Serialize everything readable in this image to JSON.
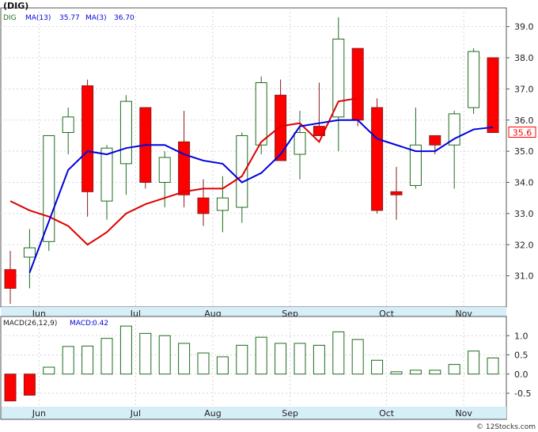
{
  "chart_data": [
    {
      "type": "candlestick",
      "title": "(DIG)",
      "symbol": "DIG",
      "ma13_label": "MA(13)",
      "ma13_value": "35.77",
      "ma3_label": "MA(3)",
      "ma3_value": "36.70",
      "last_price": "35.6",
      "ylim": [
        30.0,
        39.6
      ],
      "yticks": [
        "31.0",
        "32.0",
        "33.0",
        "34.0",
        "35.0",
        "36.0",
        "37.0",
        "38.0",
        "39.0"
      ],
      "ytick_values": [
        31,
        32,
        33,
        34,
        35,
        36,
        37,
        38,
        39
      ],
      "x_labels": [
        "Jun",
        "Jul",
        "Aug",
        "Sep",
        "Oct",
        "Nov"
      ],
      "x_label_index": [
        1,
        6,
        10,
        14,
        19,
        23
      ],
      "grid": true,
      "colors": {
        "up": "#1e6b1e",
        "down": "#ff0000",
        "ma13": "#0000dd",
        "ma3": "#dd0000",
        "axis_strip": "#d6eef8"
      },
      "candles": [
        {
          "o": 31.2,
          "h": 31.8,
          "l": 30.1,
          "c": 30.6
        },
        {
          "o": 31.6,
          "h": 32.5,
          "l": 30.6,
          "c": 31.9
        },
        {
          "o": 32.1,
          "h": 35.5,
          "l": 31.8,
          "c": 35.5
        },
        {
          "o": 35.6,
          "h": 36.4,
          "l": 34.9,
          "c": 36.1
        },
        {
          "o": 37.1,
          "h": 37.3,
          "l": 32.9,
          "c": 33.7
        },
        {
          "o": 33.4,
          "h": 35.2,
          "l": 32.8,
          "c": 35.1
        },
        {
          "o": 34.6,
          "h": 36.8,
          "l": 33.6,
          "c": 36.6
        },
        {
          "o": 36.4,
          "h": 36.4,
          "l": 33.8,
          "c": 34.0
        },
        {
          "o": 34.0,
          "h": 35.0,
          "l": 33.2,
          "c": 34.8
        },
        {
          "o": 35.3,
          "h": 36.3,
          "l": 33.2,
          "c": 33.6
        },
        {
          "o": 33.5,
          "h": 34.1,
          "l": 32.6,
          "c": 33.0
        },
        {
          "o": 33.1,
          "h": 34.2,
          "l": 32.4,
          "c": 33.5
        },
        {
          "o": 33.2,
          "h": 35.6,
          "l": 32.7,
          "c": 35.5
        },
        {
          "o": 35.2,
          "h": 37.4,
          "l": 34.9,
          "c": 37.2
        },
        {
          "o": 36.8,
          "h": 37.3,
          "l": 34.7,
          "c": 34.7
        },
        {
          "o": 34.9,
          "h": 36.3,
          "l": 34.1,
          "c": 35.6
        },
        {
          "o": 35.8,
          "h": 37.2,
          "l": 35.5,
          "c": 35.5
        },
        {
          "o": 36.1,
          "h": 39.3,
          "l": 35.0,
          "c": 38.6
        },
        {
          "o": 38.3,
          "h": 38.3,
          "l": 35.8,
          "c": 36.0
        },
        {
          "o": 36.4,
          "h": 36.7,
          "l": 33.0,
          "c": 33.1
        },
        {
          "o": 33.7,
          "h": 34.5,
          "l": 32.8,
          "c": 33.6
        },
        {
          "o": 33.9,
          "h": 36.4,
          "l": 33.8,
          "c": 35.2
        },
        {
          "o": 35.5,
          "h": 35.5,
          "l": 34.9,
          "c": 35.2
        },
        {
          "o": 35.2,
          "h": 36.3,
          "l": 33.8,
          "c": 36.2
        },
        {
          "o": 36.4,
          "h": 38.3,
          "l": 36.2,
          "c": 38.2
        },
        {
          "o": 38.0,
          "h": 38.0,
          "l": 35.6,
          "c": 35.6
        }
      ],
      "ma13": [
        {
          "i": 1,
          "v": 31.1
        },
        {
          "i": 3,
          "v": 34.4
        },
        {
          "i": 4,
          "v": 35.0
        },
        {
          "i": 5,
          "v": 34.9
        },
        {
          "i": 6,
          "v": 35.1
        },
        {
          "i": 7,
          "v": 35.2
        },
        {
          "i": 8,
          "v": 35.2
        },
        {
          "i": 9,
          "v": 34.9
        },
        {
          "i": 10,
          "v": 34.7
        },
        {
          "i": 11,
          "v": 34.6
        },
        {
          "i": 12,
          "v": 34.0
        },
        {
          "i": 13,
          "v": 34.3
        },
        {
          "i": 14,
          "v": 34.9
        },
        {
          "i": 15,
          "v": 35.8
        },
        {
          "i": 16,
          "v": 35.9
        },
        {
          "i": 17,
          "v": 36.0
        },
        {
          "i": 18,
          "v": 36.0
        },
        {
          "i": 19,
          "v": 35.4
        },
        {
          "i": 20,
          "v": 35.2
        },
        {
          "i": 21,
          "v": 35.0
        },
        {
          "i": 22,
          "v": 35.0
        },
        {
          "i": 23,
          "v": 35.4
        },
        {
          "i": 24,
          "v": 35.7
        },
        {
          "i": 25,
          "v": 35.77
        }
      ],
      "ma3": [
        {
          "i": 0,
          "v": 33.4
        },
        {
          "i": 1,
          "v": 33.1
        },
        {
          "i": 2,
          "v": 32.9
        },
        {
          "i": 3,
          "v": 32.6
        },
        {
          "i": 4,
          "v": 32.0
        },
        {
          "i": 5,
          "v": 32.4
        },
        {
          "i": 6,
          "v": 33.0
        },
        {
          "i": 7,
          "v": 33.3
        },
        {
          "i": 8,
          "v": 33.5
        },
        {
          "i": 9,
          "v": 33.7
        },
        {
          "i": 10,
          "v": 33.8
        },
        {
          "i": 11,
          "v": 33.8
        },
        {
          "i": 12,
          "v": 34.2
        },
        {
          "i": 13,
          "v": 35.3
        },
        {
          "i": 14,
          "v": 35.8
        },
        {
          "i": 15,
          "v": 35.9
        },
        {
          "i": 16,
          "v": 35.3
        },
        {
          "i": 17,
          "v": 36.6
        },
        {
          "i": 18,
          "v": 36.7
        }
      ]
    },
    {
      "type": "bar",
      "title": "MACD(26,12,9)",
      "macd_label": "MACD:",
      "macd_value": "0.42",
      "ylim": [
        -0.85,
        1.5
      ],
      "yticks": [
        "1.0",
        "0.5",
        "0.0",
        "-0.5"
      ],
      "ytick_values": [
        1.0,
        0.5,
        0.0,
        -0.5
      ],
      "x_labels": [
        "Jun",
        "Jul",
        "Aug",
        "Sep",
        "Oct",
        "Nov"
      ],
      "x_label_index": [
        1,
        6,
        10,
        14,
        19,
        23
      ],
      "values": [
        -0.7,
        -0.55,
        0.18,
        0.72,
        0.73,
        0.93,
        1.25,
        1.06,
        1.0,
        0.8,
        0.55,
        0.45,
        0.75,
        0.96,
        0.8,
        0.8,
        0.75,
        1.1,
        0.9,
        0.36,
        0.06,
        0.1,
        0.1,
        0.25,
        0.6,
        0.42
      ]
    }
  ],
  "credit": "© 12Stocks.com"
}
